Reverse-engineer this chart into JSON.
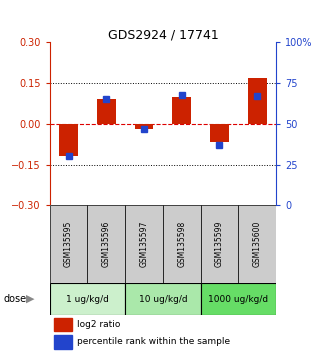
{
  "title": "GDS2924 / 17741",
  "samples": [
    "GSM135595",
    "GSM135596",
    "GSM135597",
    "GSM135598",
    "GSM135599",
    "GSM135600"
  ],
  "log2_ratio": [
    -0.12,
    0.09,
    -0.02,
    0.1,
    -0.065,
    0.17
  ],
  "percentile_rank": [
    30,
    65,
    47,
    68,
    37,
    67
  ],
  "ylim_left": [
    -0.3,
    0.3
  ],
  "ylim_right": [
    0,
    100
  ],
  "yticks_left": [
    -0.3,
    -0.15,
    0,
    0.15,
    0.3
  ],
  "yticks_right": [
    0,
    25,
    50,
    75,
    100
  ],
  "ytick_labels_right": [
    "0",
    "25",
    "50",
    "75",
    "100%"
  ],
  "dose_groups": [
    {
      "label": "1 ug/kg/d",
      "samples": [
        0,
        1
      ],
      "color": "#ccf0cc"
    },
    {
      "label": "10 ug/kg/d",
      "samples": [
        2,
        3
      ],
      "color": "#aae8aa"
    },
    {
      "label": "1000 ug/kg/d",
      "samples": [
        4,
        5
      ],
      "color": "#66dd66"
    }
  ],
  "bar_color_red": "#cc2200",
  "bar_color_blue": "#2244cc",
  "bar_width": 0.5,
  "hline_color": "#dd0000",
  "hline_style": "--",
  "grid_style": ":",
  "grid_color": "#000000",
  "sample_box_color": "#cccccc",
  "dose_arrow_label": "dose",
  "legend_red": "log2 ratio",
  "legend_blue": "percentile rank within the sample"
}
